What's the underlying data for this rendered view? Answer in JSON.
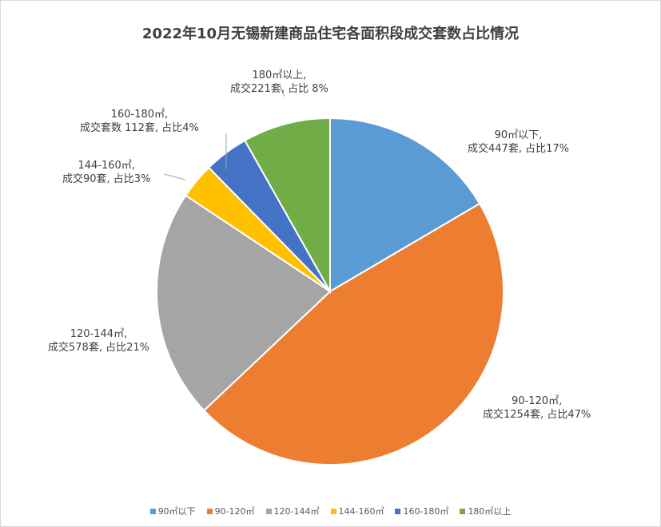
{
  "chart_data": {
    "type": "pie",
    "title": "2022年10月无锡新建商品住宅各面积段成交套数占比情况",
    "categories": [
      "90㎡以下",
      "90-120㎡",
      "120-144㎡",
      "144-160㎡",
      "160-180㎡",
      "180㎡以上"
    ],
    "values": [
      447,
      1254,
      578,
      90,
      112,
      221
    ],
    "percents": [
      17,
      47,
      21,
      3,
      4,
      8
    ],
    "colors": [
      "#5b9bd5",
      "#ed7d31",
      "#a5a5a5",
      "#ffc000",
      "#4472c4",
      "#70ad47"
    ],
    "data_labels": [
      {
        "line1": "90㎡以下,",
        "line2": "成交447套, 占比17%"
      },
      {
        "line1": "90-120㎡,",
        "line2": "成交1254套, 占比47%"
      },
      {
        "line1": "120-144㎡,",
        "line2": "成交578套, 占比21%"
      },
      {
        "line1": "144-160㎡,",
        "line2": "成交90套, 占比3%"
      },
      {
        "line1": "160-180㎡,",
        "line2": "成交套数 112套, 占比4%"
      },
      {
        "line1": "180㎡以上,",
        "line2": "成交221套, 占比 8%"
      }
    ],
    "legend_position": "bottom"
  }
}
